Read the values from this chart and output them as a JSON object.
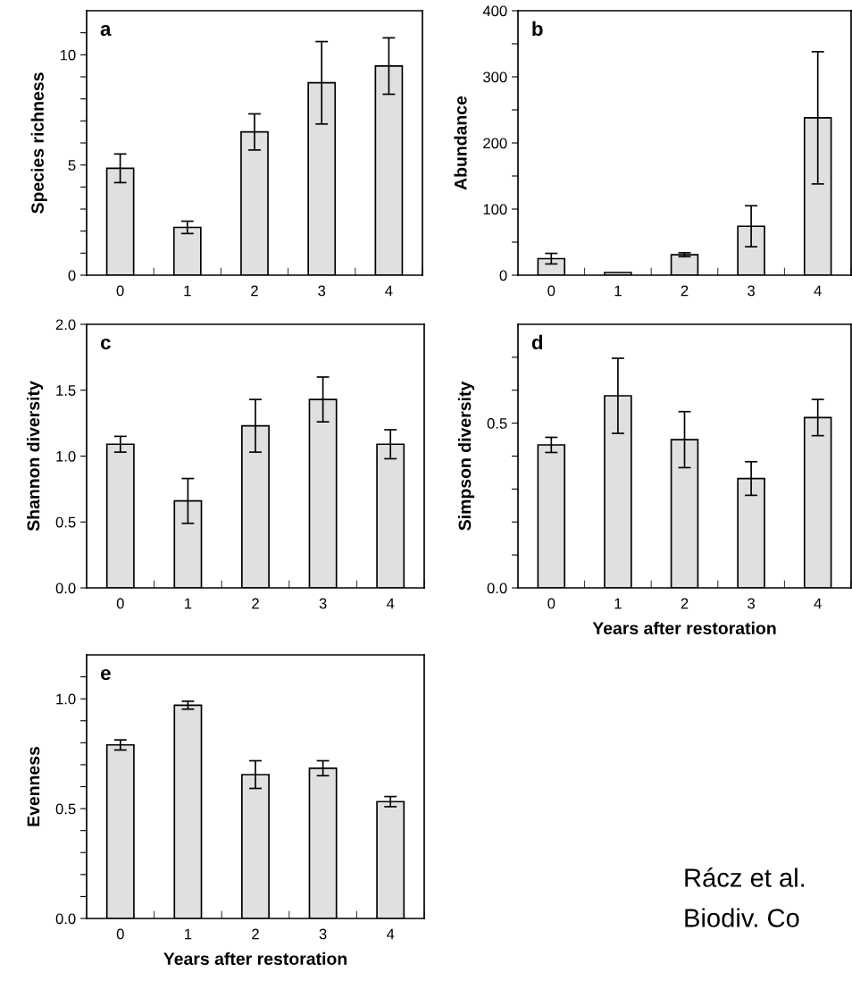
{
  "chart_data": [
    {
      "type": "bar",
      "title": "a",
      "ylabel": "Species richness",
      "categories": [
        "0",
        "1",
        "2",
        "3",
        "4"
      ],
      "values": [
        4.85,
        2.17,
        6.5,
        8.73,
        9.49
      ],
      "errors": [
        0.65,
        0.28,
        0.82,
        1.87,
        1.28
      ],
      "color": "#e0e0e0",
      "ylim": [
        0,
        12
      ],
      "yticks": [
        0,
        {
          "value": 1,
          "label": null
        },
        {
          "value": 2,
          "label": null
        },
        {
          "value": 3,
          "label": null
        },
        {
          "value": 4,
          "label": null
        },
        5,
        {
          "value": 6,
          "label": null
        },
        {
          "value": 7,
          "label": null
        },
        {
          "value": 8,
          "label": null
        },
        {
          "value": 9,
          "label": null
        },
        10,
        {
          "value": 11,
          "label": null
        }
      ],
      "grid": false,
      "legend": false
    },
    {
      "type": "bar",
      "title": "b",
      "ylabel": "Abundance",
      "categories": [
        "0",
        "1",
        "2",
        "3",
        "4"
      ],
      "values": [
        25,
        4,
        31,
        74,
        238
      ],
      "errors": [
        8,
        null,
        3,
        31,
        100
      ],
      "color": "#e0e0e0",
      "ylim": [
        0,
        400
      ],
      "yticks": [
        0,
        {
          "value": 50,
          "label": null
        },
        100,
        {
          "value": 150,
          "label": null
        },
        200,
        {
          "value": 250,
          "label": null
        },
        300,
        {
          "value": 350,
          "label": null
        },
        400
      ],
      "grid": false,
      "legend": false
    },
    {
      "type": "bar",
      "title": "c",
      "ylabel": "Shannon diversity",
      "categories": [
        "0",
        "1",
        "2",
        "3",
        "4"
      ],
      "values": [
        1.09,
        0.66,
        1.23,
        1.43,
        1.09
      ],
      "errors": [
        0.06,
        0.17,
        0.2,
        0.17,
        0.11
      ],
      "color": "#e0e0e0",
      "ylim": [
        0,
        2
      ],
      "yticks": [
        {
          "value": 0,
          "label": "0.0"
        },
        {
          "value": 0.5,
          "label": "0.5"
        },
        {
          "value": 1,
          "label": "1.0"
        },
        {
          "value": 1.5,
          "label": "1.5"
        },
        {
          "value": 2,
          "label": "2.0"
        }
      ],
      "grid": false,
      "legend": false
    },
    {
      "type": "bar",
      "title": "d",
      "ylabel": "Simpson diversity",
      "xlabel": "Years after restoration",
      "categories": [
        "0",
        "1",
        "2",
        "3",
        "4"
      ],
      "values": [
        0.434,
        0.583,
        0.45,
        0.332,
        0.517
      ],
      "errors": [
        0.023,
        0.114,
        0.085,
        0.051,
        0.055
      ],
      "color": "#e0e0e0",
      "ylim": [
        0,
        0.8
      ],
      "yticks": [
        {
          "value": 0,
          "label": "0.0"
        },
        {
          "value": 0.1,
          "label": null
        },
        {
          "value": 0.2,
          "label": null
        },
        {
          "value": 0.3,
          "label": null
        },
        {
          "value": 0.4,
          "label": null
        },
        {
          "value": 0.5,
          "label": "0.5"
        },
        {
          "value": 0.6,
          "label": null
        },
        {
          "value": 0.7,
          "label": null
        }
      ],
      "grid": false,
      "legend": false
    },
    {
      "type": "bar",
      "title": "e",
      "ylabel": "Evenness",
      "xlabel": "Years after restoration",
      "categories": [
        "0",
        "1",
        "2",
        "3",
        "4"
      ],
      "values": [
        0.79,
        0.971,
        0.655,
        0.684,
        0.532
      ],
      "errors": [
        0.023,
        0.018,
        0.063,
        0.034,
        0.023
      ],
      "color": "#e0e0e0",
      "ylim": [
        0,
        1.2
      ],
      "yticks": [
        {
          "value": 0,
          "label": "0.0"
        },
        {
          "value": 0.1,
          "label": null
        },
        {
          "value": 0.2,
          "label": null
        },
        {
          "value": 0.3,
          "label": null
        },
        {
          "value": 0.4,
          "label": null
        },
        {
          "value": 0.5,
          "label": "0.5"
        },
        {
          "value": 0.6,
          "label": null
        },
        {
          "value": 0.7,
          "label": null
        },
        {
          "value": 0.8,
          "label": null
        },
        {
          "value": 0.9,
          "label": null
        },
        {
          "value": 1,
          "label": "1.0"
        },
        {
          "value": 1.1,
          "label": null
        }
      ],
      "grid": false,
      "legend": false,
      "annotations": [
        "Rácz et al.",
        "Biodiv. Co"
      ]
    }
  ]
}
